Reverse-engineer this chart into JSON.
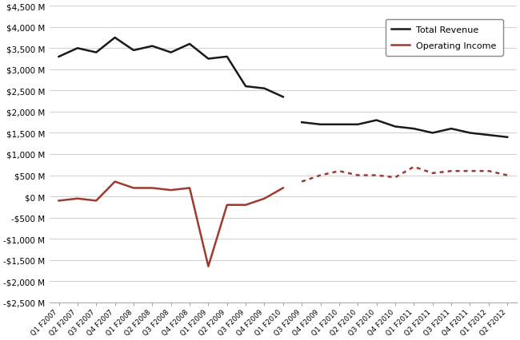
{
  "all_labels": [
    "Q1 F2007",
    "Q2 F2007",
    "Q3 F2007",
    "Q4 F2007",
    "Q1 F2008",
    "Q2 F2008",
    "Q3 F2008",
    "Q4 F2008",
    "Q1 F2009",
    "Q2 F2009",
    "Q3 F2009",
    "Q4 F2009",
    "Q1 F2010",
    "Q3 F2009",
    "Q4 F2009",
    "Q1 F2010",
    "Q2 F2010",
    "Q3 F2010",
    "Q4 F2010",
    "Q1 F2011",
    "Q2 F2011",
    "Q3 F2011",
    "Q4 F2011",
    "Q1 F2012",
    "Q2 F2012"
  ],
  "revenue_indices": [
    0,
    1,
    2,
    3,
    4,
    5,
    6,
    7,
    8,
    9,
    10,
    11,
    12
  ],
  "revenue_values": [
    3300,
    3500,
    3400,
    3750,
    3450,
    3550,
    3400,
    3600,
    3250,
    3300,
    2600,
    2550,
    2350
  ],
  "op_income_indices": [
    0,
    1,
    2,
    3,
    4,
    5,
    6,
    7,
    8,
    9,
    10,
    11,
    12
  ],
  "op_income_values": [
    -100,
    -50,
    -100,
    350,
    200,
    200,
    150,
    200,
    -1650,
    -200,
    -200,
    -50,
    200
  ],
  "oracle_rev_indices": [
    13,
    14,
    15,
    16,
    17,
    18,
    19,
    20,
    21,
    22,
    23,
    24
  ],
  "oracle_rev_values": [
    1750,
    1700,
    1700,
    1700,
    1800,
    1650,
    1600,
    1500,
    1600,
    1500,
    1450,
    1400
  ],
  "oracle_op_indices": [
    13,
    14,
    15,
    16,
    17,
    18,
    19,
    20,
    21,
    22,
    23,
    24
  ],
  "oracle_op_values": [
    350,
    500,
    600,
    500,
    500,
    450,
    700,
    550,
    600,
    600,
    600,
    500
  ],
  "revenue_color": "#1a1a1a",
  "op_income_color": "#9e3a2f",
  "ylim_min": -2500,
  "ylim_max": 4500,
  "ytick_step": 500,
  "background_color": "#ffffff",
  "legend_revenue_label": "Total Revenue",
  "legend_op_income_label": "Operating Income"
}
